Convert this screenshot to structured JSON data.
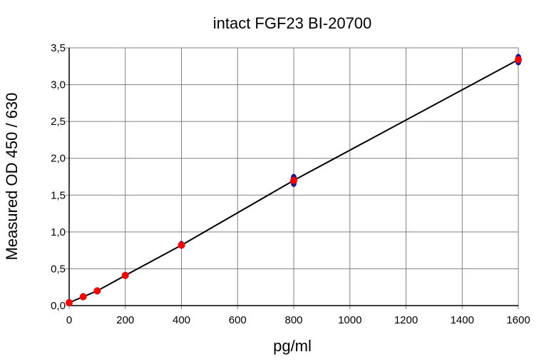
{
  "chart_data": {
    "type": "scatter",
    "title": "intact FGF23 BI-20700",
    "xlabel": "pg/ml",
    "ylabel": "Measured OD 450 / 630",
    "xlim": [
      0,
      1600
    ],
    "ylim": [
      0,
      3.5
    ],
    "x_ticks": [
      "0",
      "200",
      "400",
      "600",
      "800",
      "1000",
      "1200",
      "1400",
      "1600"
    ],
    "x_tick_values": [
      0,
      200,
      400,
      600,
      800,
      1000,
      1200,
      1400,
      1600
    ],
    "y_ticks": [
      "0,0",
      "0,5",
      "1,0",
      "1,5",
      "2,0",
      "2,5",
      "3,0",
      "3,5"
    ],
    "y_tick_values": [
      0,
      0.5,
      1.0,
      1.5,
      2.0,
      2.5,
      3.0,
      3.5
    ],
    "grid": true,
    "series": [
      {
        "kind": "replicates",
        "color": "#1a1a8c",
        "x": [
          0,
          0,
          50,
          50,
          100,
          100,
          200,
          200,
          400,
          400,
          800,
          800,
          1600,
          1600
        ],
        "y": [
          0.04,
          0.04,
          0.12,
          0.12,
          0.2,
          0.2,
          0.41,
          0.41,
          0.82,
          0.83,
          1.74,
          1.66,
          3.37,
          3.31
        ]
      },
      {
        "kind": "mean",
        "color": "#ff0000",
        "x": [
          0,
          50,
          100,
          200,
          400,
          800,
          1600
        ],
        "y": [
          0.04,
          0.12,
          0.2,
          0.41,
          0.82,
          1.7,
          3.34
        ]
      },
      {
        "kind": "fit-line",
        "color": "#000000",
        "x": [
          0,
          50,
          100,
          200,
          400,
          800,
          1600
        ],
        "y": [
          0.04,
          0.12,
          0.2,
          0.41,
          0.82,
          1.7,
          3.34
        ]
      }
    ]
  }
}
